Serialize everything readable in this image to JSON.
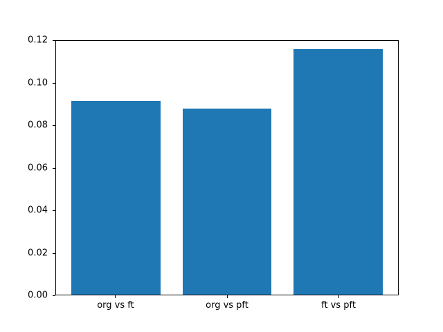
{
  "chart_data": {
    "type": "bar",
    "categories": [
      "org vs ft",
      "org vs pft",
      "ft vs pft"
    ],
    "values": [
      0.0915,
      0.0878,
      0.116
    ],
    "title": "",
    "xlabel": "",
    "ylabel": "",
    "ylim": [
      0,
      0.12
    ],
    "ytick_values": [
      0,
      0.02,
      0.04,
      0.06,
      0.08,
      0.1,
      0.12
    ],
    "ytick_labels": [
      "0.00",
      "0.02",
      "0.04",
      "0.06",
      "0.08",
      "0.10",
      "0.12"
    ],
    "grid": false,
    "legend": false,
    "bar_color": "#1f77b4",
    "axis_color": "#000000",
    "background_color": "#ffffff"
  }
}
